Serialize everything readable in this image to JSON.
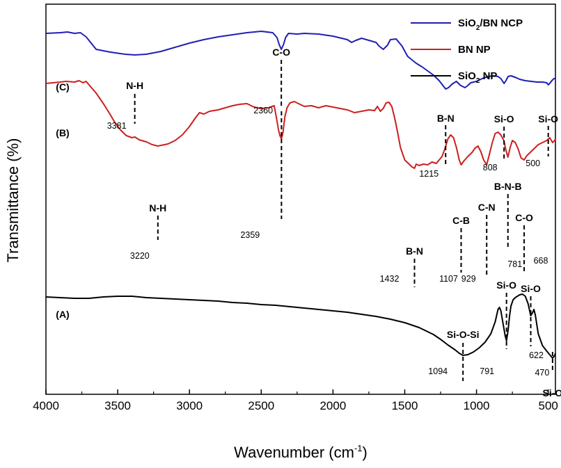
{
  "chart_data": {
    "type": "line",
    "xlabel": "Wavenumber (cm",
    "xlabel_sup": "-1",
    "xlabel_end": ")",
    "ylabel": "Transmittance (%)",
    "xlim": [
      4000,
      450
    ],
    "x_reversed": true,
    "xticks": [
      4000,
      3500,
      3000,
      2500,
      2000,
      1500,
      1000,
      500
    ],
    "y_ticks_shown": false,
    "legend_position": "top-right",
    "legend": [
      {
        "text": "SiO",
        "sub": "2",
        "rest": "/BN NCP",
        "color": "#1f1fb4"
      },
      {
        "text": "BN NP",
        "sub": "",
        "rest": "",
        "color": "#cc1f1f"
      },
      {
        "text": "SiO",
        "sub": "2",
        "rest": " NP",
        "color": "#000000"
      }
    ],
    "series": [
      {
        "name": "SiO2/BN NCP",
        "tag": "(C)",
        "color": "#1f1fb4",
        "points": [
          [
            4000,
            98
          ],
          [
            3900,
            99
          ],
          [
            3850,
            100
          ],
          [
            3800,
            98
          ],
          [
            3760,
            99
          ],
          [
            3720,
            93
          ],
          [
            3650,
            75
          ],
          [
            3550,
            71
          ],
          [
            3450,
            68
          ],
          [
            3380,
            67
          ],
          [
            3300,
            68
          ],
          [
            3200,
            72
          ],
          [
            3100,
            78
          ],
          [
            3000,
            84
          ],
          [
            2900,
            89
          ],
          [
            2800,
            93
          ],
          [
            2700,
            96
          ],
          [
            2600,
            99
          ],
          [
            2500,
            101
          ],
          [
            2420,
            99
          ],
          [
            2390,
            92
          ],
          [
            2375,
            82
          ],
          [
            2360,
            75
          ],
          [
            2345,
            82
          ],
          [
            2330,
            92
          ],
          [
            2310,
            98
          ],
          [
            2250,
            97
          ],
          [
            2200,
            98
          ],
          [
            2100,
            97
          ],
          [
            2000,
            94
          ],
          [
            1900,
            89
          ],
          [
            1870,
            85
          ],
          [
            1840,
            88
          ],
          [
            1800,
            91
          ],
          [
            1750,
            88
          ],
          [
            1700,
            85
          ],
          [
            1680,
            80
          ],
          [
            1650,
            75
          ],
          [
            1620,
            81
          ],
          [
            1600,
            89
          ],
          [
            1560,
            90
          ],
          [
            1520,
            80
          ],
          [
            1480,
            65
          ],
          [
            1420,
            55
          ],
          [
            1380,
            50
          ],
          [
            1340,
            44
          ],
          [
            1300,
            38
          ],
          [
            1260,
            30
          ],
          [
            1230,
            22
          ],
          [
            1215,
            18
          ],
          [
            1195,
            20
          ],
          [
            1170,
            25
          ],
          [
            1140,
            29
          ],
          [
            1110,
            23
          ],
          [
            1080,
            20
          ],
          [
            1060,
            23
          ],
          [
            1040,
            27
          ],
          [
            1000,
            29
          ],
          [
            960,
            33
          ],
          [
            920,
            36
          ],
          [
            880,
            37
          ],
          [
            850,
            36
          ],
          [
            830,
            33
          ],
          [
            808,
            26
          ],
          [
            795,
            30
          ],
          [
            780,
            36
          ],
          [
            760,
            37
          ],
          [
            720,
            34
          ],
          [
            700,
            32
          ],
          [
            660,
            30
          ],
          [
            620,
            29
          ],
          [
            580,
            28
          ],
          [
            540,
            28
          ],
          [
            510,
            27
          ],
          [
            500,
            24
          ],
          [
            490,
            26
          ],
          [
            475,
            30
          ],
          [
            460,
            33
          ],
          [
            450,
            33
          ]
        ]
      },
      {
        "name": "BN NP",
        "tag": "(B)",
        "color": "#cc1f1f",
        "points": [
          [
            4000,
            30
          ],
          [
            3950,
            31
          ],
          [
            3900,
            32
          ],
          [
            3860,
            33
          ],
          [
            3800,
            32
          ],
          [
            3770,
            34
          ],
          [
            3740,
            31
          ],
          [
            3720,
            33
          ],
          [
            3700,
            28
          ],
          [
            3650,
            16
          ],
          [
            3600,
            1
          ],
          [
            3560,
            -12
          ],
          [
            3520,
            -26
          ],
          [
            3480,
            -37
          ],
          [
            3440,
            -45
          ],
          [
            3400,
            -48
          ],
          [
            3380,
            -47
          ],
          [
            3350,
            -51
          ],
          [
            3300,
            -54
          ],
          [
            3260,
            -58
          ],
          [
            3220,
            -60
          ],
          [
            3150,
            -57
          ],
          [
            3100,
            -52
          ],
          [
            3050,
            -44
          ],
          [
            3000,
            -32
          ],
          [
            2960,
            -20
          ],
          [
            2930,
            -12
          ],
          [
            2900,
            -14
          ],
          [
            2860,
            -10
          ],
          [
            2800,
            -8
          ],
          [
            2750,
            -5
          ],
          [
            2700,
            -2
          ],
          [
            2650,
            0
          ],
          [
            2600,
            1
          ],
          [
            2550,
            -4
          ],
          [
            2500,
            -6
          ],
          [
            2450,
            -5
          ],
          [
            2410,
            -2
          ],
          [
            2395,
            -18
          ],
          [
            2380,
            -36
          ],
          [
            2370,
            -45
          ],
          [
            2359,
            -50
          ],
          [
            2348,
            -40
          ],
          [
            2335,
            -18
          ],
          [
            2320,
            -5
          ],
          [
            2300,
            2
          ],
          [
            2270,
            4
          ],
          [
            2240,
            1
          ],
          [
            2200,
            -3
          ],
          [
            2150,
            -2
          ],
          [
            2100,
            -5
          ],
          [
            2050,
            -2
          ],
          [
            2000,
            -4
          ],
          [
            1950,
            -6
          ],
          [
            1900,
            -8
          ],
          [
            1850,
            -12
          ],
          [
            1800,
            -10
          ],
          [
            1750,
            -8
          ],
          [
            1710,
            -9
          ],
          [
            1690,
            -3
          ],
          [
            1670,
            -10
          ],
          [
            1650,
            -6
          ],
          [
            1630,
            2
          ],
          [
            1610,
            3
          ],
          [
            1590,
            -3
          ],
          [
            1570,
            -20
          ],
          [
            1550,
            -40
          ],
          [
            1530,
            -62
          ],
          [
            1500,
            -80
          ],
          [
            1470,
            -86
          ],
          [
            1450,
            -90
          ],
          [
            1432,
            -92
          ],
          [
            1420,
            -86
          ],
          [
            1400,
            -88
          ],
          [
            1370,
            -86
          ],
          [
            1340,
            -87
          ],
          [
            1310,
            -83
          ],
          [
            1280,
            -85
          ],
          [
            1260,
            -80
          ],
          [
            1240,
            -75
          ],
          [
            1220,
            -64
          ],
          [
            1200,
            -50
          ],
          [
            1180,
            -44
          ],
          [
            1160,
            -48
          ],
          [
            1140,
            -62
          ],
          [
            1120,
            -80
          ],
          [
            1107,
            -87
          ],
          [
            1090,
            -82
          ],
          [
            1060,
            -75
          ],
          [
            1030,
            -69
          ],
          [
            1010,
            -63
          ],
          [
            990,
            -60
          ],
          [
            970,
            -68
          ],
          [
            950,
            -80
          ],
          [
            929,
            -87
          ],
          [
            910,
            -72
          ],
          [
            890,
            -55
          ],
          [
            870,
            -42
          ],
          [
            850,
            -40
          ],
          [
            830,
            -44
          ],
          [
            810,
            -52
          ],
          [
            795,
            -66
          ],
          [
            781,
            -76
          ],
          [
            765,
            -62
          ],
          [
            750,
            -52
          ],
          [
            730,
            -55
          ],
          [
            710,
            -64
          ],
          [
            690,
            -77
          ],
          [
            668,
            -80
          ],
          [
            650,
            -74
          ],
          [
            630,
            -70
          ],
          [
            600,
            -64
          ],
          [
            570,
            -58
          ],
          [
            540,
            -55
          ],
          [
            510,
            -52
          ],
          [
            490,
            -48
          ],
          [
            470,
            -55
          ],
          [
            455,
            -52
          ],
          [
            450,
            -50
          ]
        ]
      },
      {
        "name": "SiO2 NP",
        "tag": "(A)",
        "color": "#000000",
        "points": [
          [
            4000,
            -122
          ],
          [
            3900,
            -123
          ],
          [
            3800,
            -124
          ],
          [
            3700,
            -124
          ],
          [
            3600,
            -122
          ],
          [
            3500,
            -121
          ],
          [
            3400,
            -121
          ],
          [
            3300,
            -123
          ],
          [
            3200,
            -124
          ],
          [
            3100,
            -125
          ],
          [
            3000,
            -126
          ],
          [
            2900,
            -127
          ],
          [
            2800,
            -128
          ],
          [
            2700,
            -130
          ],
          [
            2600,
            -131
          ],
          [
            2500,
            -133
          ],
          [
            2400,
            -134
          ],
          [
            2300,
            -136
          ],
          [
            2200,
            -138
          ],
          [
            2100,
            -140
          ],
          [
            2000,
            -142
          ],
          [
            1900,
            -144
          ],
          [
            1800,
            -147
          ],
          [
            1700,
            -150
          ],
          [
            1600,
            -154
          ],
          [
            1500,
            -159
          ],
          [
            1400,
            -166
          ],
          [
            1300,
            -176
          ],
          [
            1250,
            -183
          ],
          [
            1200,
            -191
          ],
          [
            1150,
            -198
          ],
          [
            1120,
            -203
          ],
          [
            1094,
            -206
          ],
          [
            1060,
            -205
          ],
          [
            1020,
            -201
          ],
          [
            980,
            -195
          ],
          [
            940,
            -187
          ],
          [
            900,
            -175
          ],
          [
            870,
            -158
          ],
          [
            850,
            -140
          ],
          [
            840,
            -137
          ],
          [
            830,
            -142
          ],
          [
            815,
            -160
          ],
          [
            800,
            -178
          ],
          [
            791,
            -185
          ],
          [
            780,
            -170
          ],
          [
            770,
            -150
          ],
          [
            760,
            -135
          ],
          [
            745,
            -126
          ],
          [
            730,
            -123
          ],
          [
            700,
            -119
          ],
          [
            680,
            -118
          ],
          [
            660,
            -121
          ],
          [
            640,
            -132
          ],
          [
            622,
            -149
          ],
          [
            610,
            -145
          ],
          [
            600,
            -140
          ],
          [
            590,
            -148
          ],
          [
            570,
            -175
          ],
          [
            540,
            -192
          ],
          [
            510,
            -200
          ],
          [
            490,
            -205
          ],
          [
            470,
            -210
          ],
          [
            455,
            -206
          ],
          [
            450,
            -203
          ]
        ]
      }
    ],
    "annotations": [
      {
        "label": "N-H",
        "number": "3381",
        "x": 3381,
        "series": 0
      },
      {
        "label": "C-O",
        "number": "2360",
        "x": 2360,
        "series": 0
      },
      {
        "label": "B-N",
        "number": "1215",
        "x": 1215,
        "series": 0
      },
      {
        "label": "Si-O",
        "number": "808",
        "x": 808,
        "series": 0
      },
      {
        "label": "Si-O",
        "number": "500",
        "x": 500,
        "series": 0
      },
      {
        "label": "N-H",
        "number": "3220",
        "x": 3220,
        "series": 1
      },
      {
        "label": "",
        "number": "2359",
        "x": 2359,
        "series": 1
      },
      {
        "label": "B-N",
        "number": "1432",
        "x": 1432,
        "series": 1
      },
      {
        "label": "C-B",
        "number": "1107",
        "x": 1107,
        "series": 1
      },
      {
        "label": "C-N",
        "number": "929",
        "x": 929,
        "series": 1
      },
      {
        "label": "B-N-B",
        "number": "781",
        "x": 781,
        "series": 1
      },
      {
        "label": "C-O",
        "number": "668",
        "x": 668,
        "series": 1
      },
      {
        "label": "Si-O-Si",
        "number": "1094",
        "x": 1094,
        "series": 2
      },
      {
        "label": "Si-O",
        "number": "791",
        "x": 791,
        "series": 2
      },
      {
        "label": "Si-O",
        "number": "622",
        "x": 622,
        "series": 2
      },
      {
        "label": "Si-O",
        "number": "470",
        "x": 470,
        "series": 2
      }
    ]
  }
}
